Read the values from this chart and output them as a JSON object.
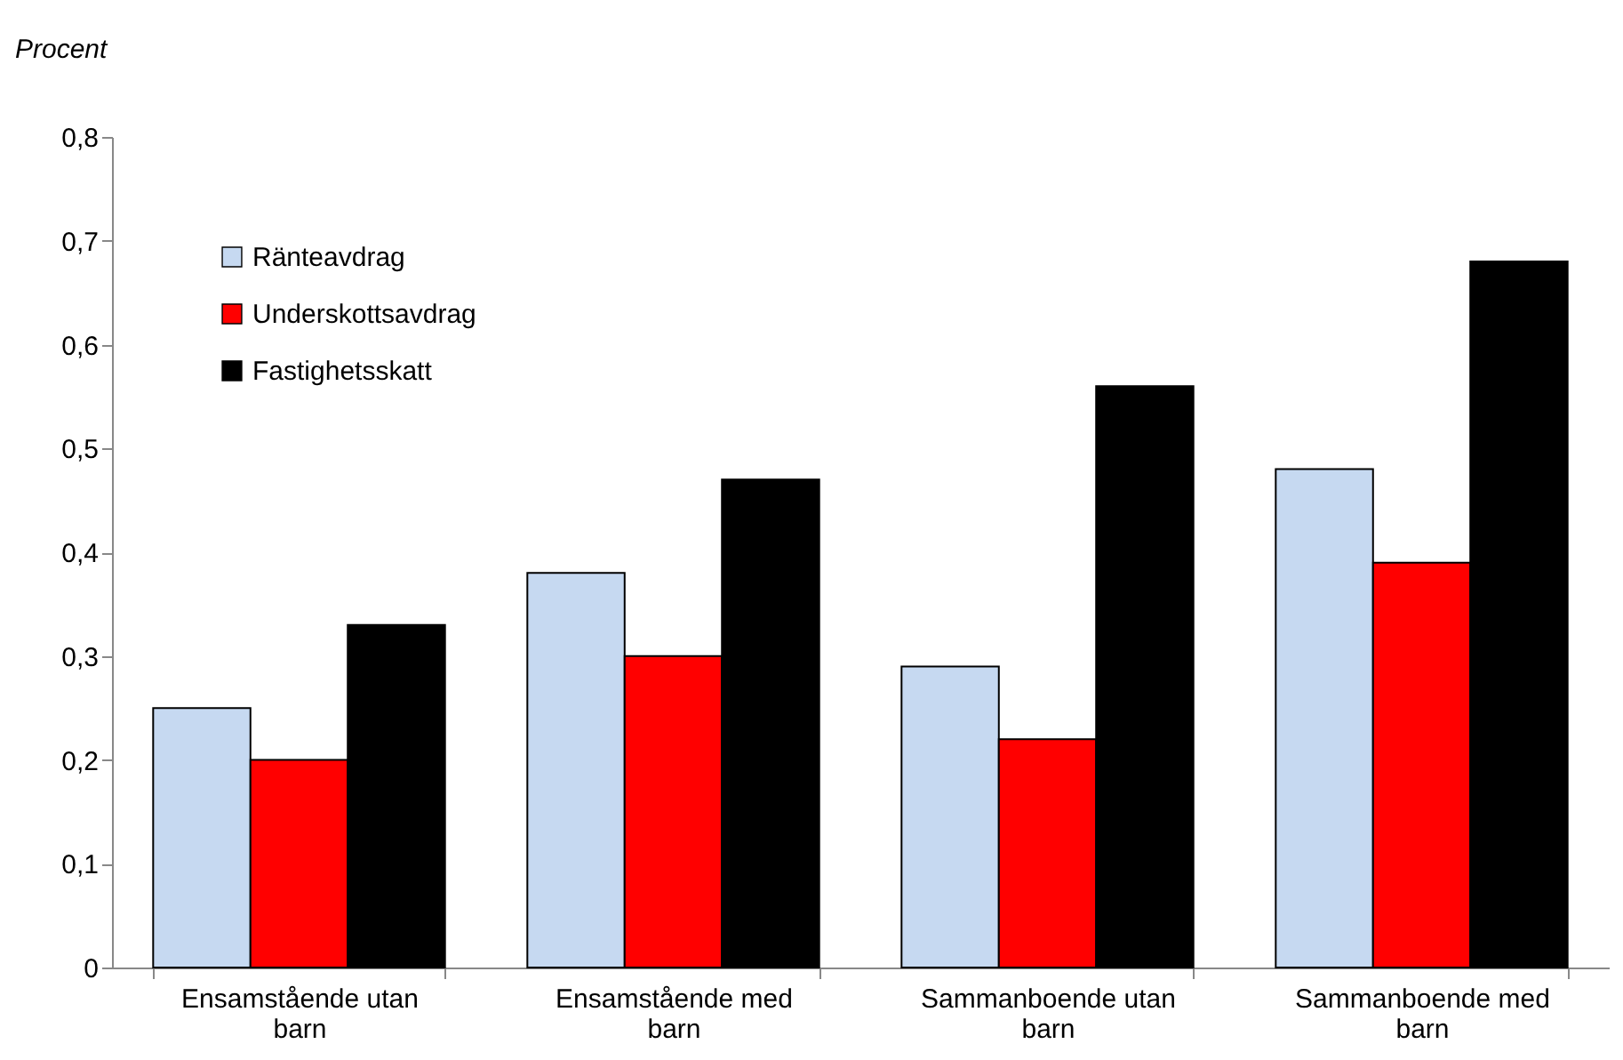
{
  "chart_data": {
    "type": "bar",
    "ylabel": "Procent",
    "categories": [
      "Ensamstående utan barn",
      "Ensamstående med barn",
      "Sammanboende utan barn",
      "Sammanboende med barn"
    ],
    "series": [
      {
        "name": "Ränteavdrag",
        "color": "#c6d9f1",
        "values": [
          0.25,
          0.38,
          0.29,
          0.48
        ]
      },
      {
        "name": "Underskottsavdrag",
        "color": "#ff0000",
        "values": [
          0.2,
          0.3,
          0.22,
          0.39
        ]
      },
      {
        "name": "Fastighetsskatt",
        "color": "#000000",
        "values": [
          0.33,
          0.47,
          0.56,
          0.68
        ]
      }
    ],
    "ylim": [
      0,
      0.8
    ],
    "yticks": [
      0,
      {
        "value": 0.1,
        "label": "0,1"
      },
      {
        "value": 0.2,
        "label": "0,2"
      },
      {
        "value": 0.3,
        "label": "0,3"
      },
      {
        "value": 0.4,
        "label": "0,4"
      },
      {
        "value": 0.5,
        "label": "0,5"
      },
      {
        "value": 0.6,
        "label": "0,6"
      },
      {
        "value": 0.7,
        "label": "0,7"
      },
      {
        "value": 0.8,
        "label": "0,8"
      }
    ],
    "grid": false,
    "legend": "top left"
  }
}
